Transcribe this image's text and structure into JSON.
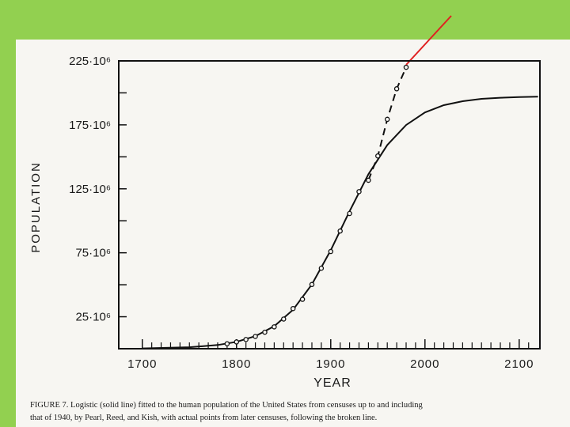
{
  "chart_data": {
    "type": "line",
    "xlabel": "YEAR",
    "ylabel": "POPULATION",
    "caption": [
      "FIGURE 7. Logistic (solid line) fitted to the human population of the United States from censuses up to and including",
      "that of 1940, by Pearl, Reed, and Kish, with actual points from later censuses, following the broken line."
    ],
    "xlim": [
      1675,
      2122
    ],
    "ylim": [
      0,
      225000000
    ],
    "xticks": [
      1700,
      1800,
      1900,
      2000,
      2100
    ],
    "xminorticks": [
      1710,
      1720,
      1730,
      1740,
      1750,
      1760,
      1770,
      1780,
      1790,
      1810,
      1820,
      1830,
      1840,
      1850,
      1860,
      1870,
      1880,
      1890,
      1910,
      1920,
      1930,
      1940,
      1950,
      1960,
      1970,
      1980,
      1990,
      2010,
      2020,
      2030,
      2040,
      2050,
      2060,
      2070,
      2080,
      2090,
      2110
    ],
    "yticks": [
      {
        "value": 25000000,
        "label": "25·10⁶"
      },
      {
        "value": 75000000,
        "label": "75·10⁶"
      },
      {
        "value": 125000000,
        "label": "125·10⁶"
      },
      {
        "value": 175000000,
        "label": "175·10⁶"
      },
      {
        "value": 225000000,
        "label": "225·10⁶"
      }
    ],
    "yminorticks": [
      50000000,
      100000000,
      150000000,
      200000000
    ],
    "series": [
      {
        "style": "solid",
        "color": "#111111",
        "x": [
          1700,
          1750,
          1780,
          1800,
          1820,
          1840,
          1860,
          1880,
          1900,
          1920,
          1940,
          1960,
          1980,
          2000,
          2020,
          2040,
          2060,
          2080,
          2100,
          2120
        ],
        "values": [
          240000,
          1150000,
          2900000,
          5400000,
          9800000,
          17600000,
          30500000,
          50300000,
          77000000,
          107500000,
          136400000,
          159200000,
          174900000,
          184700000,
          190400000,
          193500000,
          195300000,
          196200000,
          196700000,
          197000000
        ]
      },
      {
        "style": "dashed",
        "color": "#111111",
        "x": [
          1940,
          1950,
          1960,
          1970,
          1980
        ],
        "values": [
          131700000,
          150700000,
          179300000,
          203200000,
          220000000
        ]
      },
      {
        "style": "markers",
        "color": "#111111",
        "x": [
          1790,
          1800,
          1810,
          1820,
          1830,
          1840,
          1850,
          1860,
          1870,
          1880,
          1890,
          1900,
          1910,
          1920,
          1930,
          1940,
          1950,
          1960,
          1970,
          1980
        ],
        "values": [
          3900000,
          5300000,
          7200000,
          9600000,
          12900000,
          17100000,
          23200000,
          31400000,
          38600000,
          50200000,
          62900000,
          76000000,
          92000000,
          105700000,
          122800000,
          131700000,
          150700000,
          179300000,
          203200000,
          220000000
        ]
      }
    ]
  }
}
